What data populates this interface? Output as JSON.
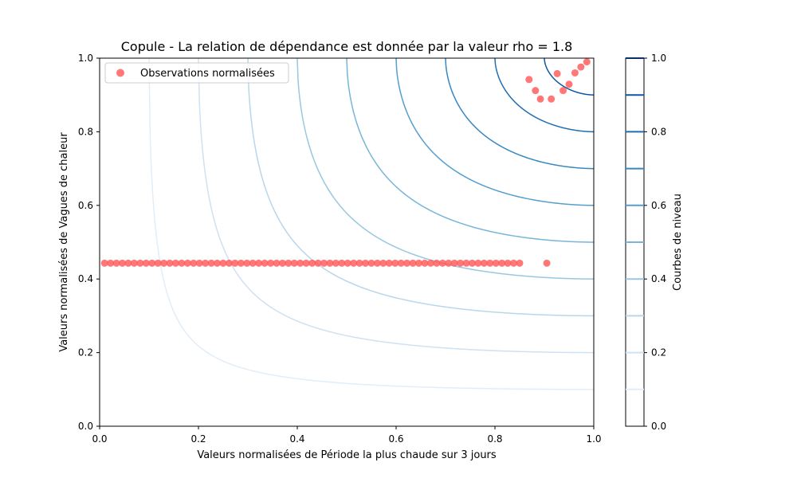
{
  "chart_data": {
    "type": "scatter",
    "title": "Copule - La relation de dépendance est donnée par la valeur rho = 1.8",
    "xlabel": "Valeurs normalisées de Période la plus chaude sur 3 jours",
    "ylabel": "Valeurs normalisées de Vagues de chaleur",
    "xlim": [
      0,
      1
    ],
    "ylim": [
      0,
      1
    ],
    "x_ticks": [
      "0.0",
      "0.2",
      "0.4",
      "0.6",
      "0.8",
      "1.0"
    ],
    "y_ticks": [
      "0.0",
      "0.2",
      "0.4",
      "0.6",
      "0.8",
      "1.0"
    ],
    "grid": false,
    "legend": {
      "placement": "upper-left",
      "entries": [
        "Observations normalisées"
      ]
    },
    "scatter_color": "#ff5555",
    "scatter": [
      {
        "x": 0.01,
        "y": 0.443
      },
      {
        "x": 0.022,
        "y": 0.443
      },
      {
        "x": 0.034,
        "y": 0.443
      },
      {
        "x": 0.046,
        "y": 0.443
      },
      {
        "x": 0.058,
        "y": 0.443
      },
      {
        "x": 0.07,
        "y": 0.443
      },
      {
        "x": 0.082,
        "y": 0.443
      },
      {
        "x": 0.094,
        "y": 0.443
      },
      {
        "x": 0.106,
        "y": 0.443
      },
      {
        "x": 0.118,
        "y": 0.443
      },
      {
        "x": 0.13,
        "y": 0.443
      },
      {
        "x": 0.142,
        "y": 0.443
      },
      {
        "x": 0.154,
        "y": 0.443
      },
      {
        "x": 0.166,
        "y": 0.443
      },
      {
        "x": 0.178,
        "y": 0.443
      },
      {
        "x": 0.19,
        "y": 0.443
      },
      {
        "x": 0.202,
        "y": 0.443
      },
      {
        "x": 0.214,
        "y": 0.443
      },
      {
        "x": 0.226,
        "y": 0.443
      },
      {
        "x": 0.238,
        "y": 0.443
      },
      {
        "x": 0.25,
        "y": 0.443
      },
      {
        "x": 0.262,
        "y": 0.443
      },
      {
        "x": 0.274,
        "y": 0.443
      },
      {
        "x": 0.286,
        "y": 0.443
      },
      {
        "x": 0.298,
        "y": 0.443
      },
      {
        "x": 0.31,
        "y": 0.443
      },
      {
        "x": 0.322,
        "y": 0.443
      },
      {
        "x": 0.334,
        "y": 0.443
      },
      {
        "x": 0.346,
        "y": 0.443
      },
      {
        "x": 0.358,
        "y": 0.443
      },
      {
        "x": 0.37,
        "y": 0.443
      },
      {
        "x": 0.382,
        "y": 0.443
      },
      {
        "x": 0.394,
        "y": 0.443
      },
      {
        "x": 0.406,
        "y": 0.443
      },
      {
        "x": 0.418,
        "y": 0.443
      },
      {
        "x": 0.43,
        "y": 0.443
      },
      {
        "x": 0.442,
        "y": 0.443
      },
      {
        "x": 0.454,
        "y": 0.443
      },
      {
        "x": 0.466,
        "y": 0.443
      },
      {
        "x": 0.478,
        "y": 0.443
      },
      {
        "x": 0.49,
        "y": 0.443
      },
      {
        "x": 0.502,
        "y": 0.443
      },
      {
        "x": 0.514,
        "y": 0.443
      },
      {
        "x": 0.526,
        "y": 0.443
      },
      {
        "x": 0.538,
        "y": 0.443
      },
      {
        "x": 0.55,
        "y": 0.443
      },
      {
        "x": 0.562,
        "y": 0.443
      },
      {
        "x": 0.574,
        "y": 0.443
      },
      {
        "x": 0.586,
        "y": 0.443
      },
      {
        "x": 0.598,
        "y": 0.443
      },
      {
        "x": 0.61,
        "y": 0.443
      },
      {
        "x": 0.622,
        "y": 0.443
      },
      {
        "x": 0.634,
        "y": 0.443
      },
      {
        "x": 0.646,
        "y": 0.443
      },
      {
        "x": 0.658,
        "y": 0.443
      },
      {
        "x": 0.67,
        "y": 0.443
      },
      {
        "x": 0.682,
        "y": 0.443
      },
      {
        "x": 0.694,
        "y": 0.443
      },
      {
        "x": 0.706,
        "y": 0.443
      },
      {
        "x": 0.718,
        "y": 0.443
      },
      {
        "x": 0.73,
        "y": 0.443
      },
      {
        "x": 0.742,
        "y": 0.443
      },
      {
        "x": 0.754,
        "y": 0.443
      },
      {
        "x": 0.766,
        "y": 0.443
      },
      {
        "x": 0.778,
        "y": 0.443
      },
      {
        "x": 0.79,
        "y": 0.443
      },
      {
        "x": 0.802,
        "y": 0.443
      },
      {
        "x": 0.814,
        "y": 0.443
      },
      {
        "x": 0.826,
        "y": 0.443
      },
      {
        "x": 0.838,
        "y": 0.443
      },
      {
        "x": 0.85,
        "y": 0.443
      },
      {
        "x": 0.905,
        "y": 0.443
      },
      {
        "x": 0.869,
        "y": 0.942
      },
      {
        "x": 0.882,
        "y": 0.912
      },
      {
        "x": 0.892,
        "y": 0.889
      },
      {
        "x": 0.914,
        "y": 0.889
      },
      {
        "x": 0.926,
        "y": 0.958
      },
      {
        "x": 0.938,
        "y": 0.912
      },
      {
        "x": 0.95,
        "y": 0.929
      },
      {
        "x": 0.962,
        "y": 0.96
      },
      {
        "x": 0.974,
        "y": 0.976
      },
      {
        "x": 0.986,
        "y": 0.99
      }
    ],
    "contour_levels": [
      0.1,
      0.2,
      0.3,
      0.4,
      0.5,
      0.6,
      0.7,
      0.8,
      0.9,
      1.0
    ],
    "contour_colors": [
      "#e1edf8",
      "#cfe1f2",
      "#b9d6ea",
      "#99c7e0",
      "#77b5d9",
      "#549fcd",
      "#3787c0",
      "#1f6eb3",
      "#0d57a1",
      "#08306b"
    ],
    "colorbar": {
      "label": "Courbes de niveau",
      "range": [
        0,
        1
      ],
      "ticks": [
        "0.0",
        "0.2",
        "0.4",
        "0.6",
        "0.8",
        "1.0"
      ]
    }
  }
}
